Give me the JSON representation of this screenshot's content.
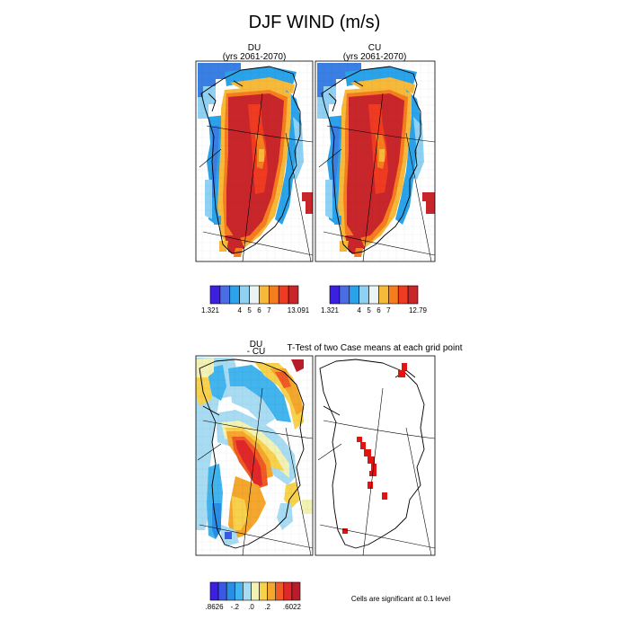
{
  "figure": {
    "title": "DJF WIND (m/s)",
    "panels": {
      "du": {
        "title_line1": "DU",
        "title_line2": "(yrs 2061-2070)"
      },
      "cu": {
        "title_line1": "CU",
        "title_line2": "(yrs 2061-2070)"
      },
      "diff": {
        "title_line1": "DU",
        "title_line2": "- CU"
      },
      "ttest": {
        "title": "T-Test of two Case means at each grid point"
      }
    },
    "colorbars": {
      "du": {
        "colors": [
          "#3c1fe0",
          "#4a6de6",
          "#2ba3ea",
          "#8fd1f2",
          "#eaf4f4",
          "#f6b93a",
          "#f57d1e",
          "#ef3b22",
          "#c8262b"
        ],
        "labels": [
          "1.321",
          "4",
          "5",
          "6",
          "7",
          "13.091"
        ]
      },
      "cu": {
        "colors": [
          "#3c1fe0",
          "#4a6de6",
          "#2ba3ea",
          "#8fd1f2",
          "#eaf4f4",
          "#f6b93a",
          "#f57d1e",
          "#ef3b22",
          "#c8262b"
        ],
        "labels": [
          "1.321",
          "4",
          "5",
          "6",
          "7",
          "12.79"
        ]
      },
      "diff": {
        "colors": [
          "#3c1fe0",
          "#3b59e3",
          "#2a8de6",
          "#42b4ee",
          "#a8dcf3",
          "#f3f2b5",
          "#f8d24c",
          "#f5a62c",
          "#ef5a25",
          "#e02828",
          "#b81d2c"
        ],
        "labels": [
          ".8626",
          "-.2",
          ".0",
          ".2",
          ".6022"
        ]
      }
    },
    "note": "Cells are significant at 0.1 level"
  }
}
